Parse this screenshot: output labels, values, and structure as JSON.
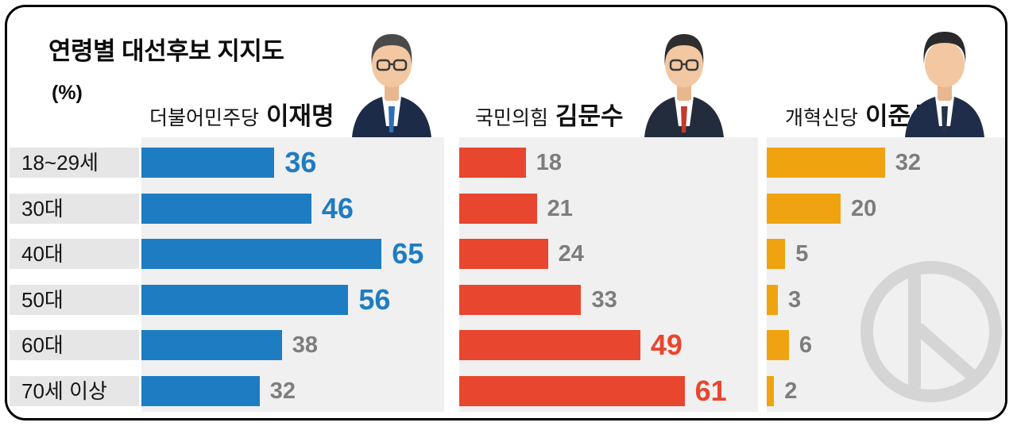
{
  "title": "연령별 대선후보 지지도",
  "unit": "(%)",
  "age_groups": [
    "18~29세",
    "30대",
    "40대",
    "50대",
    "60대",
    "70세 이상"
  ],
  "candidates": [
    {
      "party": "더불어민주당",
      "name": "이재명",
      "color": "#1e7cc2",
      "values": [
        36,
        46,
        65,
        56,
        38,
        32
      ],
      "highlight": [
        true,
        true,
        true,
        true,
        false,
        false
      ]
    },
    {
      "party": "국민의힘",
      "name": "김문수",
      "color": "#e8462f",
      "values": [
        18,
        21,
        24,
        33,
        49,
        61
      ],
      "highlight": [
        false,
        false,
        false,
        false,
        true,
        true
      ]
    },
    {
      "party": "개혁신당",
      "name": "이준석",
      "color": "#f0a310",
      "values": [
        32,
        20,
        5,
        3,
        6,
        2
      ],
      "highlight": [
        false,
        false,
        false,
        false,
        false,
        false
      ]
    }
  ],
  "chart_data": {
    "type": "bar",
    "orientation": "horizontal",
    "title": "연령별 대선후보 지지도",
    "unit": "%",
    "categories": [
      "18~29세",
      "30대",
      "40대",
      "50대",
      "60대",
      "70세 이상"
    ],
    "series": [
      {
        "name": "더불어민주당 이재명",
        "color": "#1e7cc2",
        "values": [
          36,
          46,
          65,
          56,
          38,
          32
        ]
      },
      {
        "name": "국민의힘 김문수",
        "color": "#e8462f",
        "values": [
          18,
          21,
          24,
          33,
          49,
          61
        ]
      },
      {
        "name": "개혁신당 이준석",
        "color": "#f0a310",
        "values": [
          32,
          20,
          5,
          3,
          6,
          2
        ]
      }
    ],
    "xlim": [
      0,
      70
    ],
    "grid": false,
    "legend_position": "column-headers"
  }
}
